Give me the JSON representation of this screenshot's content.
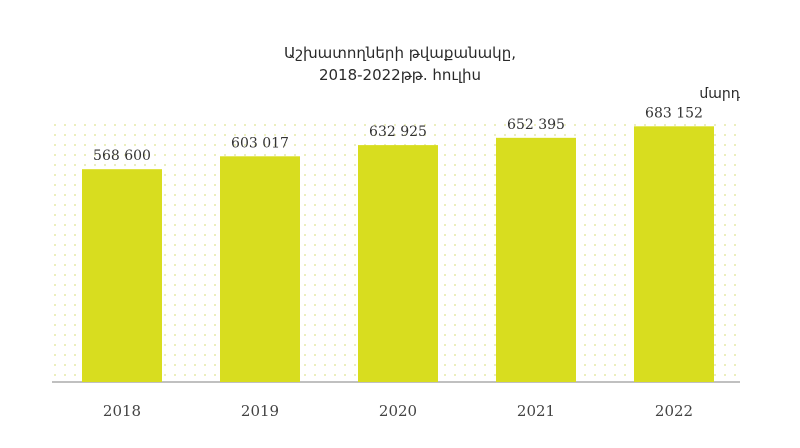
{
  "chart_data": {
    "type": "bar",
    "title_line1": "Աշխատողների թվաքանակը,",
    "title_line2": "2018-2022թթ. հուլիս",
    "unit": "մարդ",
    "categories": [
      "2018",
      "2019",
      "2020",
      "2021",
      "2022"
    ],
    "values": [
      568600,
      603017,
      632925,
      652395,
      683152
    ],
    "value_labels": [
      "568 600",
      "603 017",
      "632 925",
      "652 395",
      "683 152"
    ],
    "ylim": [
      0,
      700000
    ],
    "grid": false,
    "colors": {
      "bar": "#d8dd1f",
      "dots": "#e7e9a9",
      "axis": "#9a9a9a"
    }
  }
}
